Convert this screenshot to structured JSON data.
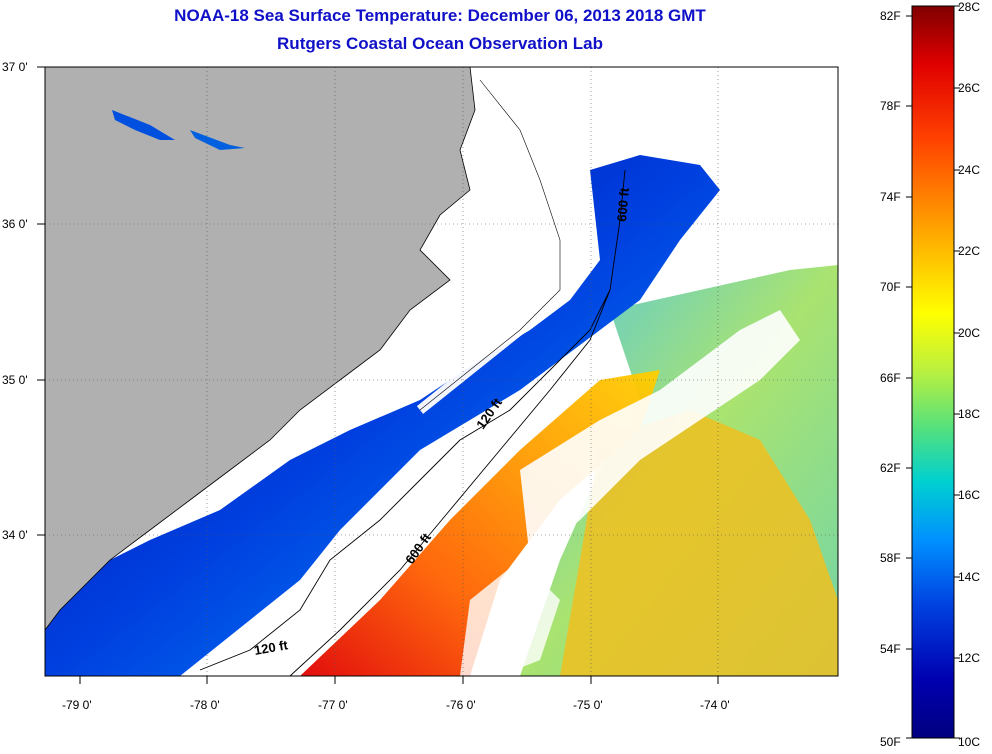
{
  "title": {
    "line1": "NOAA-18 Sea Surface Temperature:  December 06, 2013 2018 GMT",
    "line2": "Rutgers Coastal Ocean Observation Lab"
  },
  "map": {
    "lon_labels": [
      "-79 0'",
      "-78 0'",
      "-77 0'",
      "-76 0'",
      "-75 0'",
      "-74 0'"
    ],
    "lat_labels": [
      "37 0'",
      "36 0'",
      "35 0'",
      "34 0'"
    ],
    "contour_labels": [
      "120 ft",
      "600 ft",
      "600 ft",
      "120 ft"
    ]
  },
  "colorbar": {
    "fahrenheit_labels": [
      "82F",
      "78F",
      "74F",
      "70F",
      "66F",
      "62F",
      "58F",
      "54F",
      "50F"
    ],
    "celsius_labels": [
      "28C",
      "26C",
      "24C",
      "22C",
      "20C",
      "18C",
      "16C",
      "14C",
      "12C",
      "10C"
    ],
    "colors": [
      "#800000",
      "#e00000",
      "#ff4000",
      "#ff8c00",
      "#ffd000",
      "#ffff00",
      "#b8f040",
      "#50e080",
      "#00d0d0",
      "#0090ff",
      "#0040e0",
      "#0000b0",
      "#000080"
    ]
  },
  "colors": {
    "land": "#b0b0b0",
    "title": "#1010c8"
  }
}
